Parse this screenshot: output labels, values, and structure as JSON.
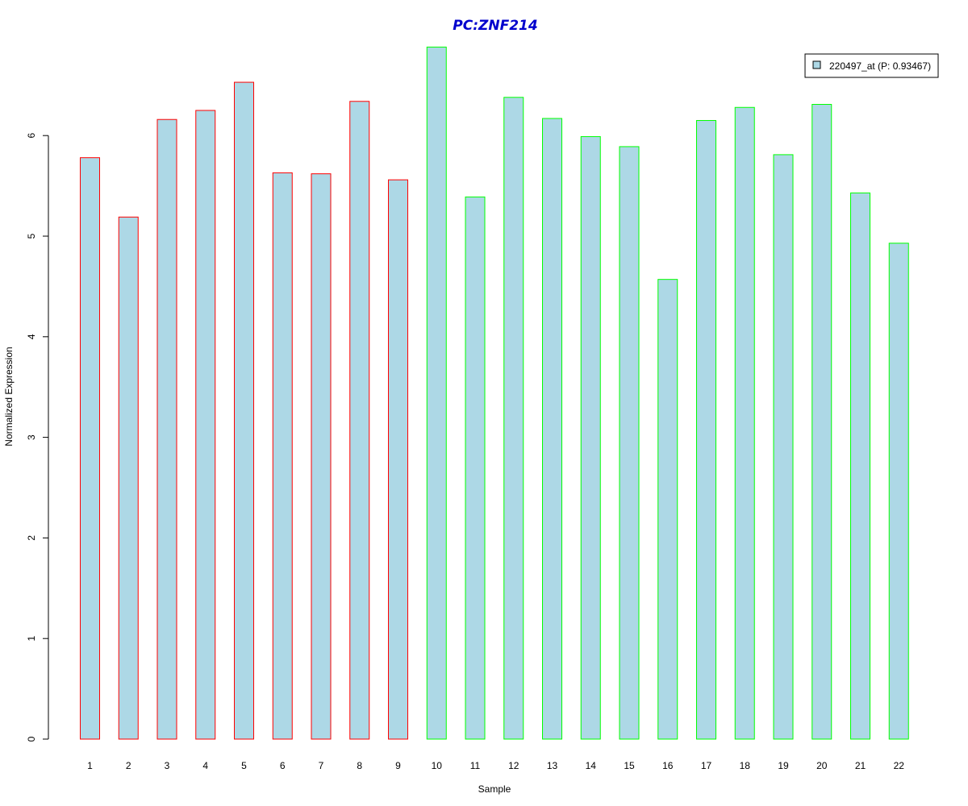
{
  "colors": {
    "bar_fill": "#add8e6",
    "group1_border": "#ff0000",
    "group2_border": "#00ff00",
    "title": "#0000cd",
    "axis": "#000000"
  },
  "chart_data": {
    "type": "bar",
    "title": "PC:ZNF214",
    "xlabel": "Sample",
    "ylabel": "Normalized Expression",
    "categories": [
      "1",
      "2",
      "3",
      "4",
      "5",
      "6",
      "7",
      "8",
      "9",
      "10",
      "11",
      "12",
      "13",
      "14",
      "15",
      "16",
      "17",
      "18",
      "19",
      "20",
      "21",
      "22"
    ],
    "series": [
      {
        "name": "220497_at (P: 0.93467)",
        "values": [
          5.78,
          5.19,
          6.16,
          6.25,
          6.53,
          5.63,
          5.62,
          6.34,
          5.56,
          6.88,
          5.39,
          6.38,
          6.17,
          5.99,
          5.89,
          4.57,
          6.15,
          6.28,
          5.81,
          6.31,
          5.43,
          4.93
        ]
      }
    ],
    "border_colors": [
      "#ff0000",
      "#ff0000",
      "#ff0000",
      "#ff0000",
      "#ff0000",
      "#ff0000",
      "#ff0000",
      "#ff0000",
      "#ff0000",
      "#00ff00",
      "#00ff00",
      "#00ff00",
      "#00ff00",
      "#00ff00",
      "#00ff00",
      "#00ff00",
      "#00ff00",
      "#00ff00",
      "#00ff00",
      "#00ff00",
      "#00ff00",
      "#00ff00"
    ],
    "yticks": [
      0,
      1,
      2,
      3,
      4,
      5,
      6
    ],
    "ylim": [
      0,
      6.88
    ],
    "legend": {
      "label": "220497_at (P: 0.93467)",
      "position": "top-right"
    },
    "grid": false
  }
}
